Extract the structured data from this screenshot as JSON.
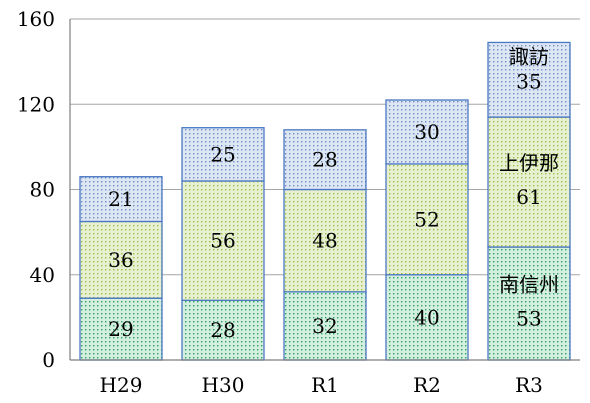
{
  "chart_data": {
    "type": "bar",
    "stacked": true,
    "categories": [
      "H29",
      "H30",
      "R1",
      "R2",
      "R3"
    ],
    "series": [
      {
        "name": "南信州",
        "values": [
          29,
          28,
          32,
          40,
          53
        ]
      },
      {
        "name": "上伊那",
        "values": [
          36,
          56,
          48,
          52,
          61
        ]
      },
      {
        "name": "諏訪",
        "values": [
          21,
          25,
          28,
          30,
          35
        ]
      }
    ],
    "ylim": [
      0,
      160
    ],
    "yticks": [
      "0",
      "40",
      "80",
      "120",
      "160"
    ],
    "grid": true,
    "colors": {
      "series_fill": [
        "#d4eee0",
        "#e8f0d4",
        "#dde6f3"
      ],
      "series_dots": [
        "#2ba35e",
        "#9cc13c",
        "#6f8fc4"
      ],
      "border": "#4a78c2",
      "gridline": "#a6a6a6",
      "axis": "#7f7f7f"
    }
  }
}
